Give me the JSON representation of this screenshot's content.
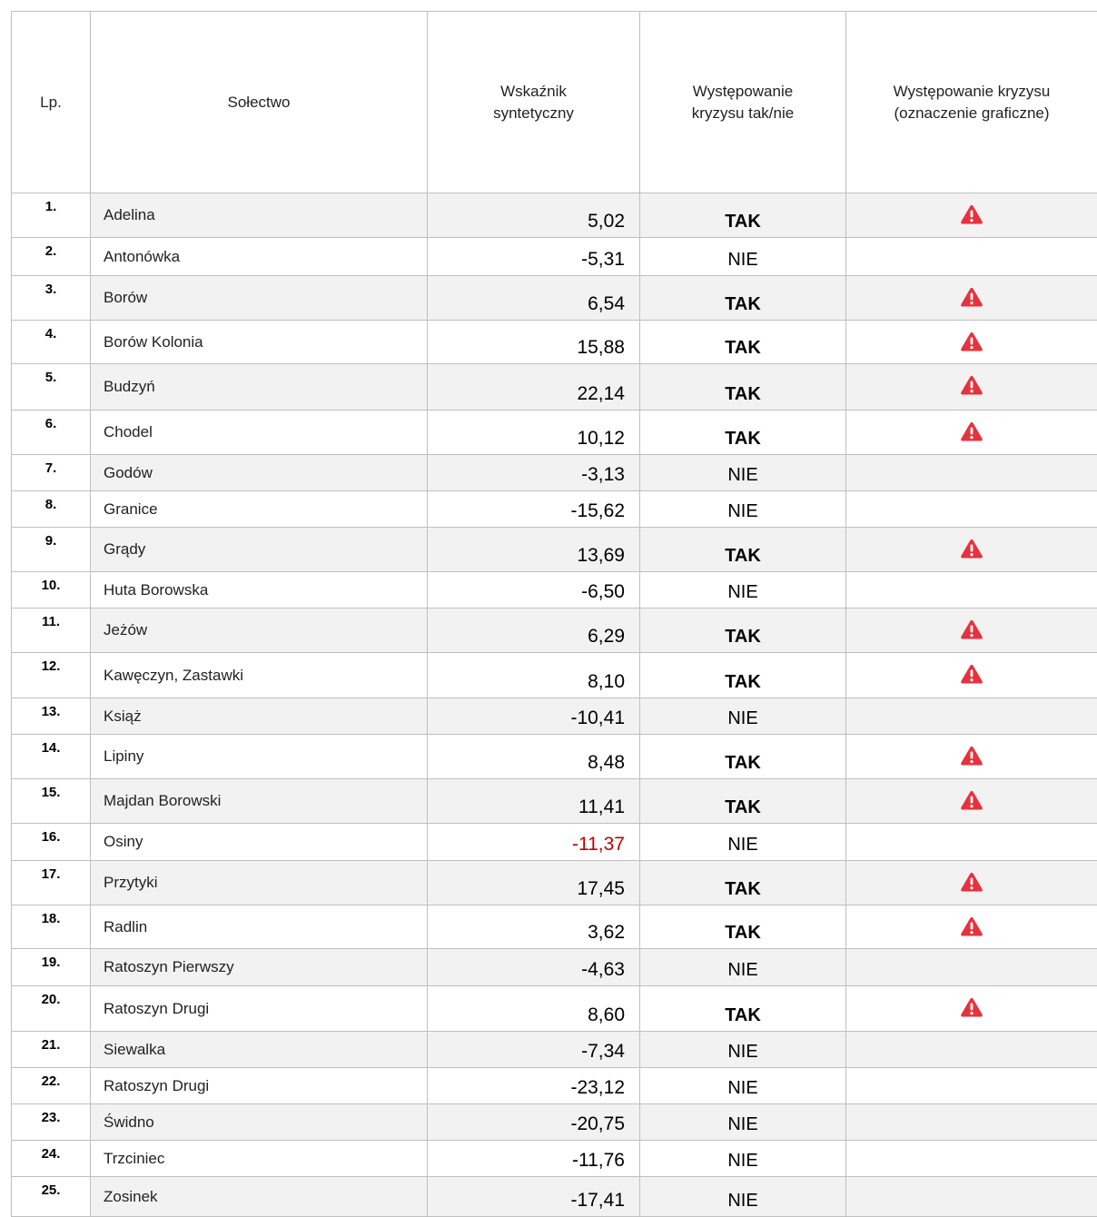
{
  "table": {
    "header": [
      "Lp.",
      "Sołectwo",
      "Wskaźnik\nsyntetyczny",
      "Występowanie\nkryzysu tak/nie",
      "Występowanie kryzysu\n(oznaczenie graficzne)"
    ],
    "rows": [
      {
        "lp": "1.",
        "name": "Adelina",
        "value": "5,02",
        "crisis": "TAK",
        "icon": true
      },
      {
        "lp": "2.",
        "name": "Antonówka",
        "value": "-5,31",
        "crisis": "NIE",
        "icon": false
      },
      {
        "lp": "3.",
        "name": "Borów",
        "value": "6,54",
        "crisis": "TAK",
        "icon": true
      },
      {
        "lp": "4.",
        "name": "Borów Kolonia",
        "value": "15,88",
        "crisis": "TAK",
        "icon": true
      },
      {
        "lp": "5.",
        "name": "Budzyń",
        "value": "22,14",
        "crisis": "TAK",
        "icon": true
      },
      {
        "lp": "6.",
        "name": "Chodel",
        "value": "10,12",
        "crisis": "TAK",
        "icon": true
      },
      {
        "lp": "7.",
        "name": "Godów",
        "value": "-3,13",
        "crisis": "NIE",
        "icon": false
      },
      {
        "lp": "8.",
        "name": "Granice",
        "value": "-15,62",
        "crisis": "NIE",
        "icon": false
      },
      {
        "lp": "9.",
        "name": "Grądy",
        "value": "13,69",
        "crisis": "TAK",
        "icon": true
      },
      {
        "lp": "10.",
        "name": "Huta Borowska",
        "value": "-6,50",
        "crisis": "NIE",
        "icon": false
      },
      {
        "lp": "11.",
        "name": "Jeżów",
        "value": "6,29",
        "crisis": "TAK",
        "icon": true
      },
      {
        "lp": "12.",
        "name": "Kawęczyn, Zastawki",
        "value": "8,10",
        "crisis": "TAK",
        "icon": true
      },
      {
        "lp": "13.",
        "name": "Książ",
        "value": "-10,41",
        "crisis": "NIE",
        "icon": false
      },
      {
        "lp": "14.",
        "name": "Lipiny",
        "value": "8,48",
        "crisis": "TAK",
        "icon": true
      },
      {
        "lp": "15.",
        "name": "Majdan Borowski",
        "value": "11,41",
        "crisis": "TAK",
        "icon": true
      },
      {
        "lp": "16.",
        "name": "Osiny",
        "value": "-11,37",
        "crisis": "NIE",
        "icon": false,
        "value_color": "#c00000"
      },
      {
        "lp": "17.",
        "name": "Przytyki",
        "value": "17,45",
        "crisis": "TAK",
        "icon": true
      },
      {
        "lp": "18.",
        "name": "Radlin",
        "value": "3,62",
        "crisis": "TAK",
        "icon": true
      },
      {
        "lp": "19.",
        "name": "Ratoszyn Pierwszy",
        "value": "-4,63",
        "crisis": "NIE",
        "icon": false
      },
      {
        "lp": "20.",
        "name": "Ratoszyn Drugi",
        "value": "8,60",
        "crisis": "TAK",
        "icon": true
      },
      {
        "lp": "21.",
        "name": "Siewalka",
        "value": "-7,34",
        "crisis": "NIE",
        "icon": false
      },
      {
        "lp": "22.",
        "name": "Ratoszyn Drugi",
        "value": "-23,12",
        "crisis": "NIE",
        "icon": false
      },
      {
        "lp": "23.",
        "name": "Świdno",
        "value": "-20,75",
        "crisis": "NIE",
        "icon": false
      },
      {
        "lp": "24.",
        "name": "Trzciniec",
        "value": "-11,76",
        "crisis": "NIE",
        "icon": false
      },
      {
        "lp": "25.",
        "name": "Zosinek",
        "value": "-17,41",
        "crisis": "NIE",
        "icon": false
      }
    ]
  }
}
